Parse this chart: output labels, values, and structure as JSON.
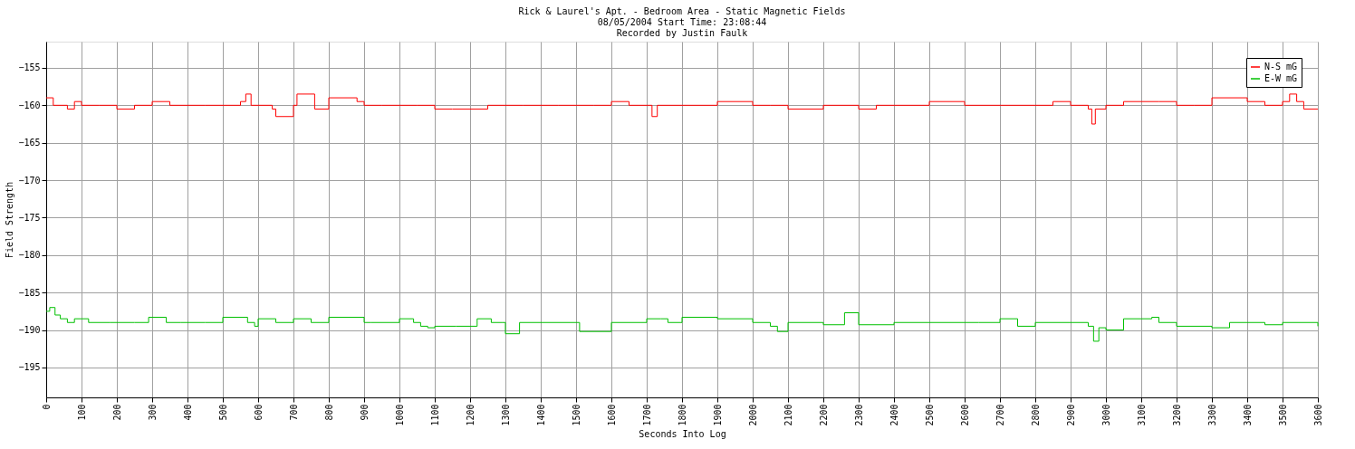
{
  "chart_data": {
    "type": "step",
    "title": [
      "Rick & Laurel's Apt. - Bedroom Area - Static Magnetic Fields",
      "08/05/2004  Start Time: 23:08:44",
      "Recorded by Justin Faulk"
    ],
    "xlabel": "Seconds Into Log",
    "ylabel": "Field Strength",
    "xlim": [
      0,
      3600
    ],
    "xticks": [
      0,
      100,
      200,
      300,
      400,
      500,
      600,
      700,
      800,
      900,
      1000,
      1100,
      1200,
      1300,
      1400,
      1500,
      1600,
      1700,
      1800,
      1900,
      2000,
      2100,
      2200,
      2300,
      2400,
      2500,
      2600,
      2700,
      2800,
      2900,
      3000,
      3100,
      3200,
      3300,
      3400,
      3500,
      3600
    ],
    "ylim": [
      -199,
      -151.5
    ],
    "yticks": [
      -155,
      -160,
      -165,
      -170,
      -175,
      -180,
      -185,
      -190,
      -195
    ],
    "grid": true,
    "legend": "top right",
    "marker": "none",
    "line_style": "solid",
    "series": [
      {
        "name": "N-S mG",
        "color": "#ff0000",
        "x": [
          0,
          20,
          60,
          80,
          100,
          150,
          200,
          250,
          300,
          350,
          400,
          450,
          500,
          550,
          565,
          580,
          640,
          650,
          700,
          710,
          760,
          800,
          880,
          900,
          950,
          1000,
          1050,
          1100,
          1150,
          1200,
          1250,
          1300,
          1350,
          1400,
          1450,
          1500,
          1550,
          1600,
          1650,
          1700,
          1715,
          1730,
          1800,
          1900,
          2000,
          2050,
          2100,
          2200,
          2300,
          2350,
          2400,
          2500,
          2600,
          2700,
          2800,
          2850,
          2900,
          2950,
          2960,
          2970,
          3000,
          3050,
          3100,
          3150,
          3200,
          3250,
          3300,
          3400,
          3450,
          3500,
          3520,
          3540,
          3560,
          3600
        ],
        "values": [
          -159,
          -160,
          -160.5,
          -159.5,
          -160,
          -160,
          -160.5,
          -160,
          -159.5,
          -160,
          -160,
          -160,
          -160,
          -159.5,
          -158.5,
          -160,
          -160.5,
          -161.5,
          -160,
          -158.5,
          -160.5,
          -159,
          -159.5,
          -160,
          -160,
          -160,
          -160,
          -160.5,
          -160.5,
          -160.5,
          -160,
          -160,
          -160,
          -160,
          -160,
          -160,
          -160,
          -159.5,
          -160,
          -160,
          -161.5,
          -160,
          -160,
          -159.5,
          -160,
          -160,
          -160.5,
          -160,
          -160.5,
          -160,
          -160,
          -159.5,
          -160,
          -160,
          -160,
          -159.5,
          -160,
          -160.5,
          -162.5,
          -160.5,
          -160,
          -159.5,
          -159.5,
          -159.5,
          -160,
          -160,
          -159,
          -159.5,
          -160,
          -159.5,
          -158.5,
          -159.5,
          -160.5,
          -160.5
        ]
      },
      {
        "name": "E-W mG",
        "color": "#00c000",
        "x": [
          0,
          10,
          25,
          40,
          60,
          80,
          120,
          180,
          250,
          290,
          340,
          380,
          450,
          500,
          570,
          590,
          600,
          650,
          700,
          750,
          800,
          900,
          920,
          1000,
          1040,
          1060,
          1080,
          1100,
          1160,
          1200,
          1220,
          1260,
          1290,
          1300,
          1340,
          1400,
          1500,
          1510,
          1600,
          1700,
          1740,
          1760,
          1800,
          1900,
          2000,
          2050,
          2070,
          2100,
          2200,
          2260,
          2300,
          2400,
          2500,
          2600,
          2640,
          2700,
          2750,
          2800,
          2900,
          2950,
          2965,
          2980,
          3000,
          3050,
          3100,
          3130,
          3150,
          3200,
          3300,
          3350,
          3400,
          3450,
          3500,
          3600
        ],
        "values": [
          -187.5,
          -187,
          -188,
          -188.5,
          -189,
          -188.5,
          -189,
          -189,
          -189,
          -188.3,
          -189,
          -189,
          -189,
          -188.3,
          -189,
          -189.5,
          -188.5,
          -189,
          -188.5,
          -189,
          -188.3,
          -189,
          -189,
          -188.5,
          -189,
          -189.5,
          -189.7,
          -189.5,
          -189.5,
          -189.5,
          -188.5,
          -189,
          -189,
          -190.5,
          -189,
          -189,
          -189,
          -190.2,
          -189,
          -188.5,
          -188.5,
          -189,
          -188.3,
          -188.5,
          -189,
          -189.5,
          -190.2,
          -189,
          -189.3,
          -187.7,
          -189.3,
          -189,
          -189,
          -189,
          -189,
          -188.5,
          -189.5,
          -189,
          -189,
          -189.5,
          -191.5,
          -189.7,
          -190,
          -188.5,
          -188.5,
          -188.3,
          -189,
          -189.5,
          -189.7,
          -189,
          -189,
          -189.3,
          -189,
          -189.5
        ]
      }
    ]
  }
}
